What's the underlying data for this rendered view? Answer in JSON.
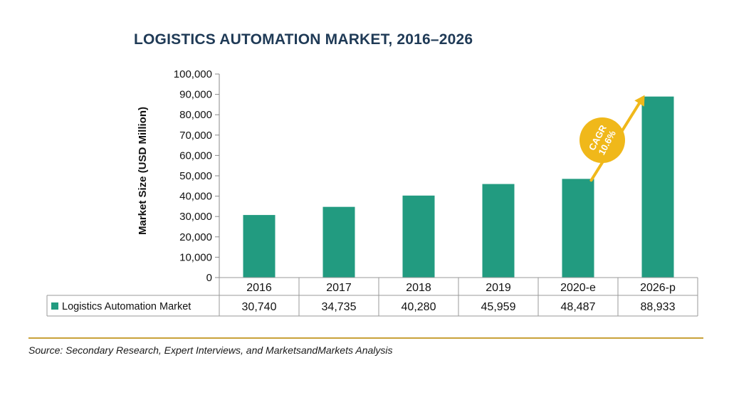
{
  "chart_data": {
    "type": "bar",
    "title": "LOGISTICS AUTOMATION MARKET, 2016–2026",
    "ylabel": "Market Size  (USD Million)",
    "xlabel": "",
    "categories": [
      "2016",
      "2017",
      "2018",
      "2019",
      "2020-e",
      "2026-p"
    ],
    "series": [
      {
        "name": "Logistics Automation Market",
        "values": [
          30740,
          34735,
          40280,
          45959,
          48487,
          88933
        ],
        "value_labels": [
          "30,740",
          "34,735",
          "40,280",
          "45,959",
          "48,487",
          "88,933"
        ]
      }
    ],
    "ylim": [
      0,
      100000
    ],
    "yticks": [
      0,
      10000,
      20000,
      30000,
      40000,
      50000,
      60000,
      70000,
      80000,
      90000,
      100000
    ],
    "ytick_labels": [
      "0",
      "10,000",
      "20,000",
      "30,000",
      "40,000",
      "50,000",
      "60,000",
      "70,000",
      "80,000",
      "90,000",
      "100,000"
    ],
    "grid": false,
    "legend": "data-table",
    "annotation": {
      "line1": "CAGR",
      "line2": "10.6%",
      "from_category": "2020-e",
      "to_category": "2026-p"
    },
    "colors": {
      "bar": "#229b80",
      "annotation": "#f0b81a",
      "title": "#1f3a56",
      "divider": "#c9a23a"
    }
  },
  "footer": {
    "source": "Source: Secondary Research, Expert Interviews, and MarketsandMarkets Analysis"
  }
}
